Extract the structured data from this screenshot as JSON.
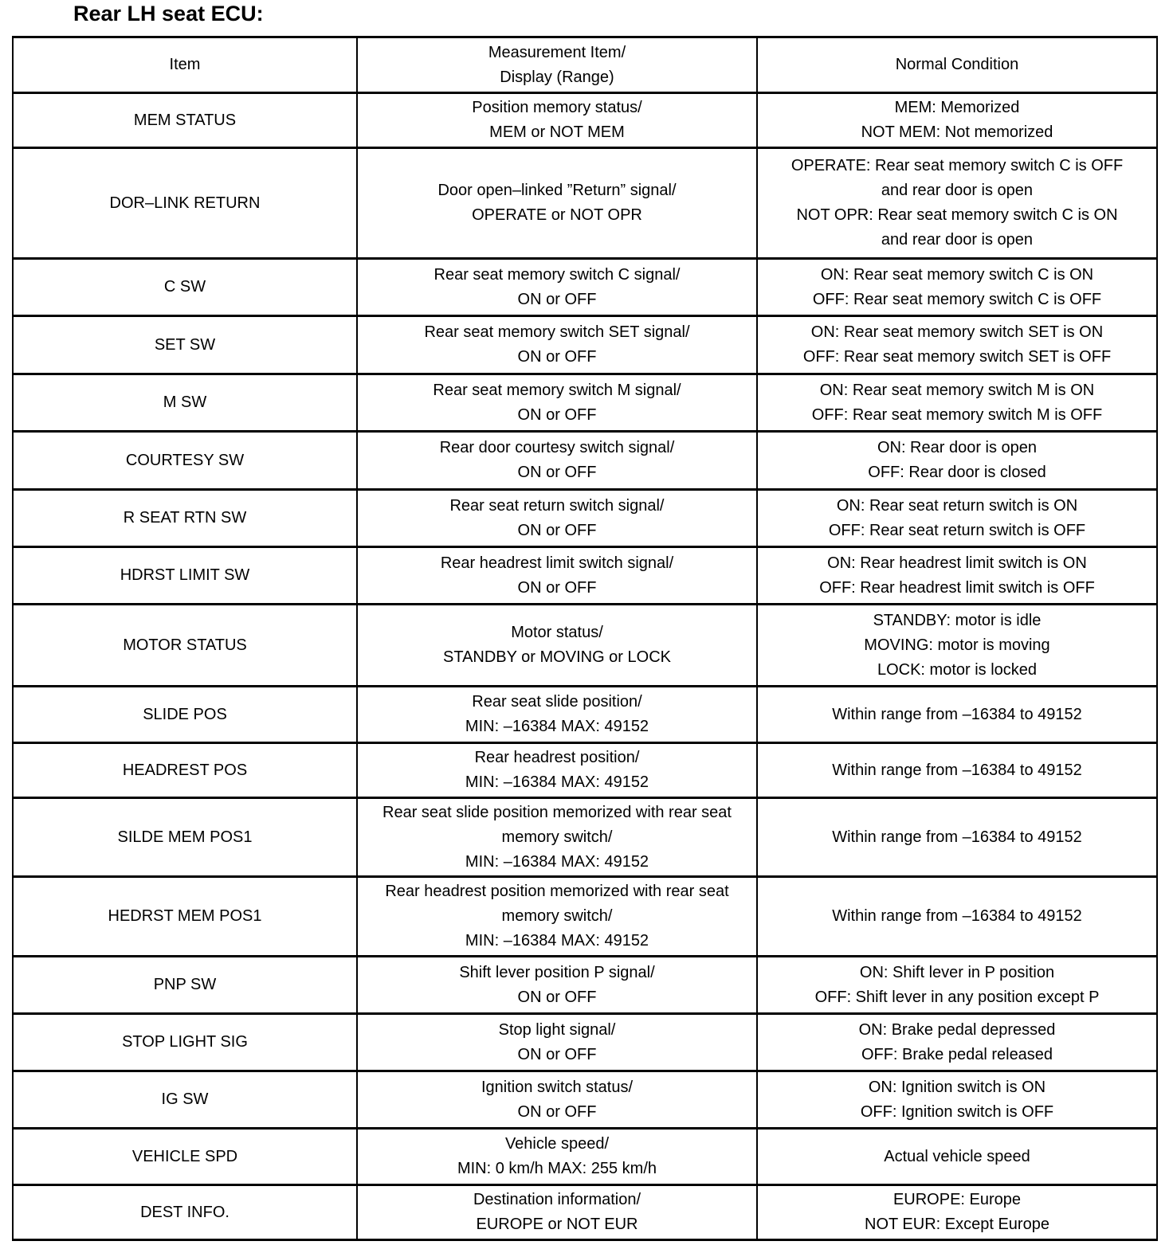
{
  "title": "Rear LH seat ECU:",
  "table": {
    "headers": [
      [
        "Item"
      ],
      [
        "Measurement Item/",
        "Display (Range)"
      ],
      [
        "Normal Condition"
      ]
    ],
    "rows": [
      {
        "item": [
          "MEM STATUS"
        ],
        "measurement": [
          "Position memory status/",
          "MEM or NOT MEM"
        ],
        "normal": [
          "MEM: Memorized",
          "NOT MEM: Not memorized"
        ]
      },
      {
        "item": [
          "DOR–LINK RETURN"
        ],
        "measurement": [
          "Door open–linked ”Return” signal/",
          "OPERATE or NOT OPR"
        ],
        "normal": [
          "OPERATE: Rear seat memory switch C is OFF",
          "and rear door is open",
          "NOT OPR: Rear seat memory switch C is ON",
          "and rear door is open"
        ]
      },
      {
        "item": [
          "C SW"
        ],
        "measurement": [
          "Rear seat memory switch C signal/",
          "ON or OFF"
        ],
        "normal": [
          "ON: Rear seat memory switch C is ON",
          "OFF: Rear seat memory switch C is OFF"
        ]
      },
      {
        "item": [
          "SET SW"
        ],
        "measurement": [
          "Rear seat memory switch SET signal/",
          "ON or OFF"
        ],
        "normal": [
          "ON: Rear seat memory switch SET is ON",
          "OFF: Rear seat memory switch SET is OFF"
        ]
      },
      {
        "item": [
          "M SW"
        ],
        "measurement": [
          "Rear seat memory switch M signal/",
          "ON or OFF"
        ],
        "normal": [
          "ON: Rear seat memory switch M is ON",
          "OFF: Rear seat memory switch M is OFF"
        ]
      },
      {
        "item": [
          "COURTESY SW"
        ],
        "measurement": [
          "Rear door courtesy switch signal/",
          "ON or OFF"
        ],
        "normal": [
          "ON: Rear door is open",
          "OFF: Rear door is closed"
        ]
      },
      {
        "item": [
          "R SEAT RTN SW"
        ],
        "measurement": [
          "Rear seat return switch signal/",
          "ON or OFF"
        ],
        "normal": [
          "ON: Rear seat return switch is ON",
          "OFF: Rear seat return switch is OFF"
        ]
      },
      {
        "item": [
          "HDRST LIMIT SW"
        ],
        "measurement": [
          "Rear headrest limit switch signal/",
          "ON or OFF"
        ],
        "normal": [
          "ON: Rear headrest limit switch is ON",
          "OFF: Rear headrest limit switch is OFF"
        ]
      },
      {
        "item": [
          "MOTOR STATUS"
        ],
        "measurement": [
          "Motor status/",
          "STANDBY or MOVING or LOCK"
        ],
        "normal": [
          "STANDBY: motor is idle",
          "MOVING: motor is moving",
          "LOCK: motor is locked"
        ]
      },
      {
        "item": [
          "SLIDE POS"
        ],
        "measurement": [
          "Rear seat slide position/",
          "MIN: –16384 MAX: 49152"
        ],
        "normal": [
          "Within range from –16384 to 49152"
        ]
      },
      {
        "item": [
          "HEADREST POS"
        ],
        "measurement": [
          "Rear headrest position/",
          "MIN: –16384 MAX: 49152"
        ],
        "normal": [
          "Within range from –16384 to 49152"
        ]
      },
      {
        "item": [
          "SILDE MEM POS1"
        ],
        "measurement": [
          "Rear seat slide position memorized with rear seat",
          "memory switch/",
          "MIN: –16384 MAX: 49152"
        ],
        "normal": [
          "Within range from –16384 to 49152"
        ]
      },
      {
        "item": [
          "HEDRST MEM POS1"
        ],
        "measurement": [
          "Rear headrest position memorized with rear seat",
          "memory switch/",
          "MIN: –16384 MAX: 49152"
        ],
        "normal": [
          "Within range from –16384 to 49152"
        ]
      },
      {
        "item": [
          "PNP SW"
        ],
        "measurement": [
          "Shift lever position P signal/",
          "ON or OFF"
        ],
        "normal": [
          "ON: Shift lever in P position",
          "OFF: Shift lever in any position except P"
        ]
      },
      {
        "item": [
          "STOP LIGHT SIG"
        ],
        "measurement": [
          "Stop light signal/",
          "ON or OFF"
        ],
        "normal": [
          "ON: Brake pedal depressed",
          "OFF: Brake pedal released"
        ]
      },
      {
        "item": [
          "IG SW"
        ],
        "measurement": [
          "Ignition switch status/",
          "ON or OFF"
        ],
        "normal": [
          "ON: Ignition switch is ON",
          "OFF: Ignition switch is OFF"
        ]
      },
      {
        "item": [
          "VEHICLE SPD"
        ],
        "measurement": [
          "Vehicle speed/",
          "MIN: 0 km/h MAX: 255 km/h"
        ],
        "normal": [
          "Actual vehicle speed"
        ]
      },
      {
        "item": [
          "DEST INFO."
        ],
        "measurement": [
          "Destination information/",
          "EUROPE or NOT EUR"
        ],
        "normal": [
          "EUROPE: Europe",
          "NOT EUR: Except Europe"
        ]
      }
    ]
  }
}
